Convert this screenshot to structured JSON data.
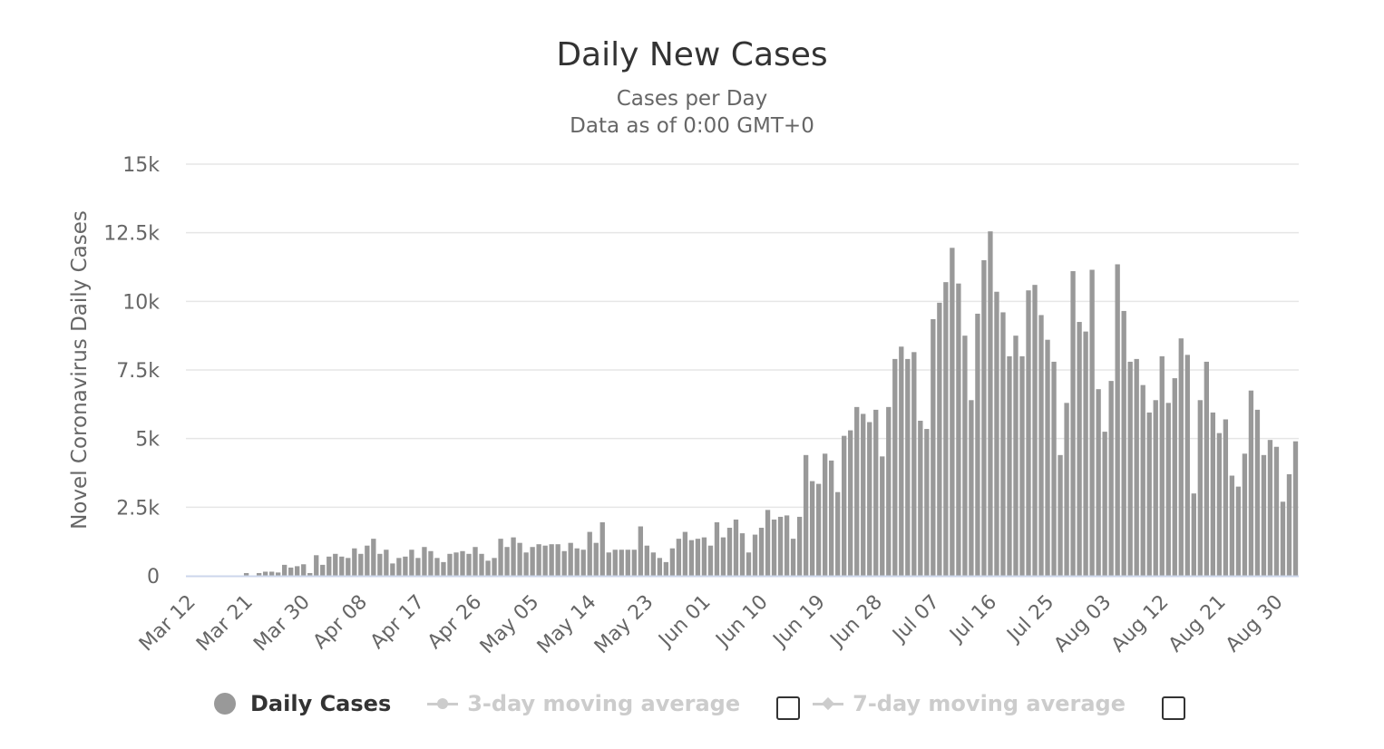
{
  "chart_data": {
    "type": "bar",
    "title": "Daily New Cases",
    "subtitle": [
      "Cases per Day",
      "Data as of 0:00 GMT+0"
    ],
    "ylabel": "Novel Coronavirus Daily Cases",
    "xlabel": "",
    "ylim": [
      0,
      15000
    ],
    "y_ticks": [
      "0",
      "2.5k",
      "5k",
      "7.5k",
      "10k",
      "12.5k",
      "15k"
    ],
    "x_tick_labels": [
      "Mar 12",
      "Mar 21",
      "Mar 30",
      "Apr 08",
      "Apr 17",
      "Apr 26",
      "May 05",
      "May 14",
      "May 23",
      "Jun 01",
      "Jun 10",
      "Jun 19",
      "Jun 28",
      "Jul 07",
      "Jul 16",
      "Jul 25",
      "Aug 03",
      "Aug 12",
      "Aug 21",
      "Aug 30"
    ],
    "x_start": "Mar 12",
    "x_end": "Aug 31",
    "grid": true,
    "bar_color": "#999999",
    "series": [
      {
        "name": "Daily Cases",
        "values": [
          0,
          0,
          0,
          0,
          0,
          0,
          0,
          0,
          0,
          100,
          0,
          100,
          150,
          150,
          120,
          400,
          300,
          350,
          420,
          100,
          750,
          400,
          700,
          800,
          700,
          650,
          1000,
          800,
          1100,
          1350,
          800,
          950,
          450,
          650,
          700,
          950,
          650,
          1050,
          900,
          650,
          500,
          800,
          850,
          900,
          800,
          1050,
          800,
          550,
          650,
          1350,
          1050,
          1400,
          1200,
          850,
          1050,
          1150,
          1100,
          1150,
          1150,
          900,
          1200,
          1000,
          950,
          1600,
          1200,
          1950,
          850,
          950,
          950,
          950,
          950,
          1800,
          1100,
          850,
          650,
          500,
          1000,
          1350,
          1600,
          1300,
          1350,
          1400,
          1100,
          1950,
          1400,
          1750,
          2050,
          1550,
          850,
          1500,
          1750,
          2400,
          2050,
          2150,
          2200,
          1350,
          2150,
          4400,
          3450,
          3350,
          4450,
          4200,
          3050,
          5100,
          5300,
          6150,
          5900,
          5600,
          6050,
          4350,
          6150,
          7900,
          8350,
          7900,
          8150,
          5650,
          5350,
          9350,
          9950,
          10700,
          11950,
          10650,
          8750,
          6400,
          9550,
          11500,
          12550,
          10350,
          9600,
          8000,
          8750,
          8000,
          10400,
          10600,
          9500,
          8600,
          7800,
          4400,
          6300,
          11100,
          9250,
          8900,
          11150,
          6800,
          5250,
          7100,
          11350,
          9650,
          7800,
          7900,
          6950,
          5950,
          6400,
          8000,
          6300,
          7200,
          8650,
          8050,
          3000,
          6400,
          7800,
          5950,
          5200,
          5700,
          3650,
          3250,
          4450,
          6750,
          6050,
          4400,
          4950,
          4700,
          2700,
          3700,
          4900
        ]
      }
    ]
  },
  "legend": {
    "items": [
      {
        "label": "Daily Cases",
        "color": "#999999",
        "active": true
      },
      {
        "label": "3-day moving average",
        "color": "#cccccc",
        "active": false
      },
      {
        "label": "7-day moving average",
        "color": "#cccccc",
        "active": false
      }
    ]
  },
  "colors": {
    "grid": "#e6e6e6",
    "axis_line": "#ccd6eb",
    "text": "#666666"
  }
}
